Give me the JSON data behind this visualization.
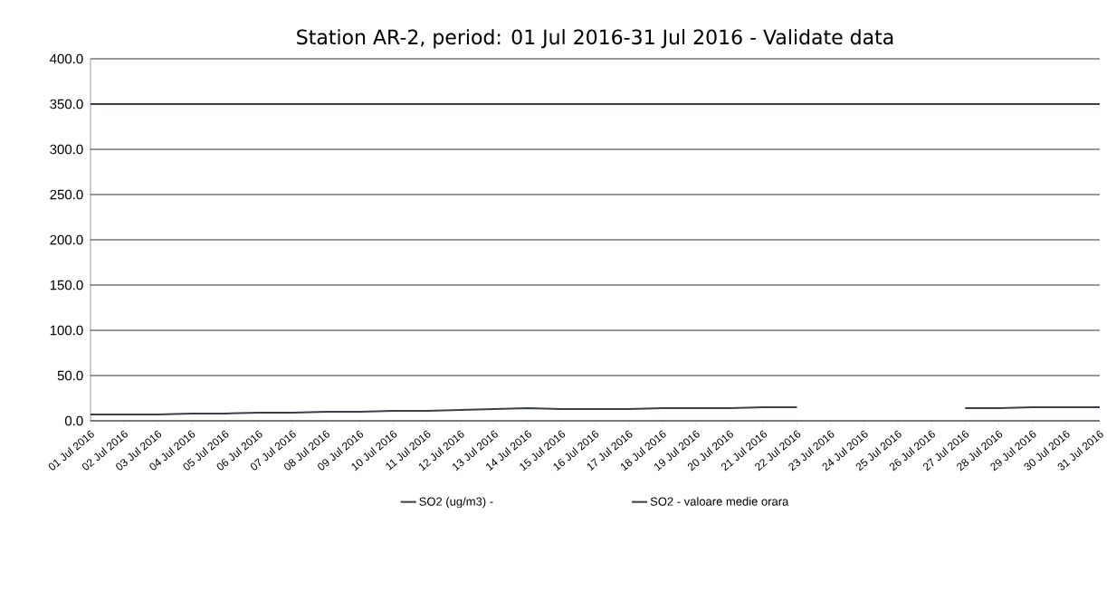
{
  "chart_data": {
    "type": "line",
    "title": "Station AR-2, period: 01 Jul 2016-31 Jul 2016 - Validate data",
    "categories": [
      "01 Jul 2016",
      "02 Jul 2016",
      "03 Jul 2016",
      "04 Jul 2016",
      "05 Jul 2016",
      "06 Jul 2016",
      "07 Jul 2016",
      "08 Jul 2016",
      "09 Jul 2016",
      "10 Jul 2016",
      "11 Jul 2016",
      "12 Jul 2016",
      "13 Jul 2016",
      "14 Jul 2016",
      "15 Jul 2016",
      "16 Jul 2016",
      "17 Jul 2016",
      "18 Jul 2016",
      "19 Jul 2016",
      "20 Jul 2016",
      "21 Jul 2016",
      "22 Jul 2016",
      "23 Jul 2016",
      "24 Jul 2016",
      "25 Jul 2016",
      "26 Jul 2016",
      "27 Jul 2016",
      "28 Jul 2016",
      "29 Jul 2016",
      "30 Jul 2016",
      "31 Jul 2016"
    ],
    "ylim": [
      0,
      400
    ],
    "yticks": [
      {
        "value": 0,
        "label": "0.0"
      },
      {
        "value": 50,
        "label": "50.0"
      },
      {
        "value": 100,
        "label": "100.0"
      },
      {
        "value": 150,
        "label": "150.0"
      },
      {
        "value": 200,
        "label": "200.0"
      },
      {
        "value": 250,
        "label": "250.0"
      },
      {
        "value": 300,
        "label": "300.0"
      },
      {
        "value": 350,
        "label": "350.0"
      },
      {
        "value": 400,
        "label": "400.0"
      }
    ],
    "grid": "y",
    "legend": "bottom",
    "marker": "none",
    "line_style": "solid",
    "series": [
      {
        "name": "SO2 (ug/m3)  -",
        "color": "#3a3f47",
        "values": [
          350,
          350,
          350,
          350,
          350,
          350,
          350,
          350,
          350,
          350,
          350,
          350,
          350,
          350,
          350,
          350,
          350,
          350,
          350,
          350,
          350,
          350,
          350,
          350,
          350,
          350,
          350,
          350,
          350,
          350,
          350
        ]
      },
      {
        "name": "SO2 - valoare medie orara",
        "color": "#3a3f47",
        "values": [
          7,
          7,
          7,
          8,
          8,
          9,
          9,
          10,
          10,
          11,
          11,
          12,
          13,
          14,
          13,
          13,
          13,
          14,
          14,
          14,
          15,
          15,
          null,
          null,
          null,
          null,
          14,
          14,
          15,
          15,
          15
        ]
      }
    ]
  }
}
